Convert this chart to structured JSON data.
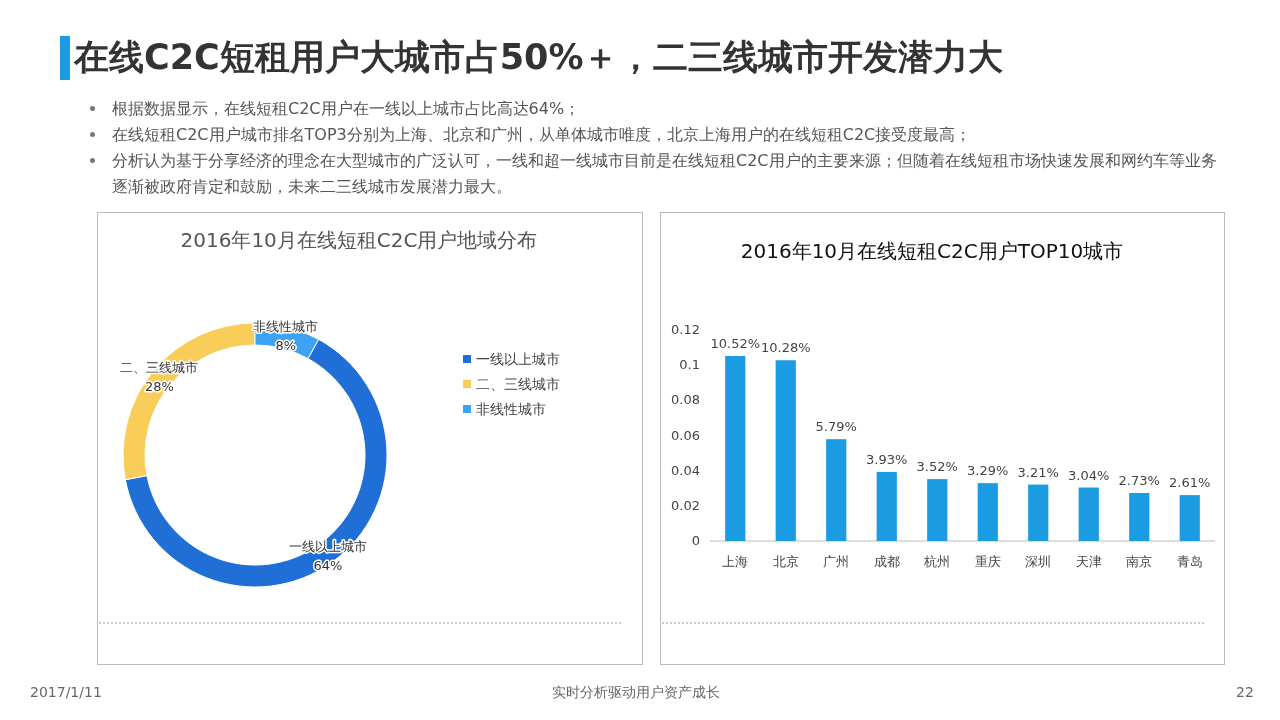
{
  "chart_data": [
    {
      "type": "other",
      "title": "在线C2C短租用户大城市占50%＋，二三线城市开发潜力大",
      "annotations": [
        "根据数据显示，在线短租C2C用户在一线以上城市占比高达64%；",
        "在线短租C2C用户城市排名TOP3分别为上海、北京和广州，从单体城市唯度，北京上海用户的在线短租C2C接受度最高；",
        "分析认为基于分享经济的理念在大型城市的广泛认可，一线和超一线城市目前是在线短租C2C用户的主要来源；但随着在线短租市场快速发展和网约车等业务逐渐被政府肯定和鼓励，未来二三线城市发展潜力最大。",
        "2017/1/11",
        "实时分析驱动用户资产成长",
        "22"
      ]
    },
    {
      "type": "donut",
      "title": "2016年10月在线短租C2C用户地域分布",
      "categories": [
        "一线以上城市",
        "二、三线城市",
        "非线性城市"
      ],
      "values": [
        64,
        28,
        8
      ],
      "colors": [
        "#1f6fd6",
        "#f8cd5a",
        "#3fa3f4"
      ],
      "value_labels": [
        "64%",
        "28%",
        "8%"
      ],
      "legend": "right"
    },
    {
      "type": "bar",
      "title": "2016年10月在线短租C2C用户TOP10城市",
      "categories": [
        "上海",
        "北京",
        "广州",
        "成都",
        "杭州",
        "重庆",
        "深圳",
        "天津",
        "南京",
        "青岛"
      ],
      "values": [
        0.1052,
        0.1028,
        0.0579,
        0.0393,
        0.0352,
        0.0329,
        0.0321,
        0.0304,
        0.0273,
        0.0261
      ],
      "value_labels": [
        "10.52%",
        "10.28%",
        "5.79%",
        "3.93%",
        "3.52%",
        "3.29%",
        "3.21%",
        "3.04%",
        "2.73%",
        "2.61%"
      ],
      "color": "#1a9be2",
      "ylim": [
        0,
        0.12
      ],
      "yticks": [
        0,
        0.02,
        0.04,
        0.06,
        0.08,
        0.1,
        0.12
      ]
    }
  ]
}
